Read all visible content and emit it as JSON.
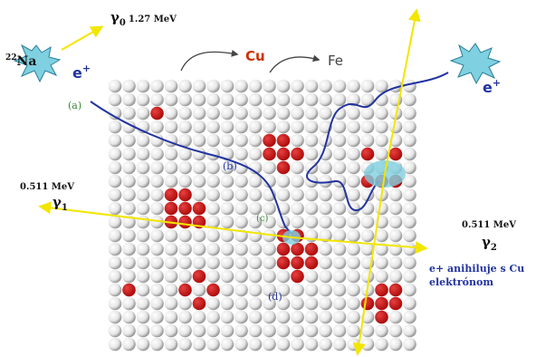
{
  "source": {
    "mass": "22",
    "symbol": "Na"
  },
  "gamma0": {
    "symbol": "γ",
    "sub": "0",
    "energy": "1.27 MeV"
  },
  "positron_left": {
    "symbol": "e",
    "sup": "+"
  },
  "positron_right": {
    "symbol": "e",
    "sup": "+"
  },
  "label_a": "(a)",
  "label_b": "(b)",
  "label_c": "(c)",
  "label_d": "(d)",
  "atom_cu": "Cu",
  "atom_fe": "Fe",
  "gamma1": {
    "energy": "0.511 MeV",
    "symbol": "γ",
    "sub": "1"
  },
  "gamma2": {
    "energy": "0.511 MeV",
    "symbol": "γ",
    "sub": "2"
  },
  "annihilation": [
    "e+ anihiluje s Cu",
    "elektrónom"
  ]
}
